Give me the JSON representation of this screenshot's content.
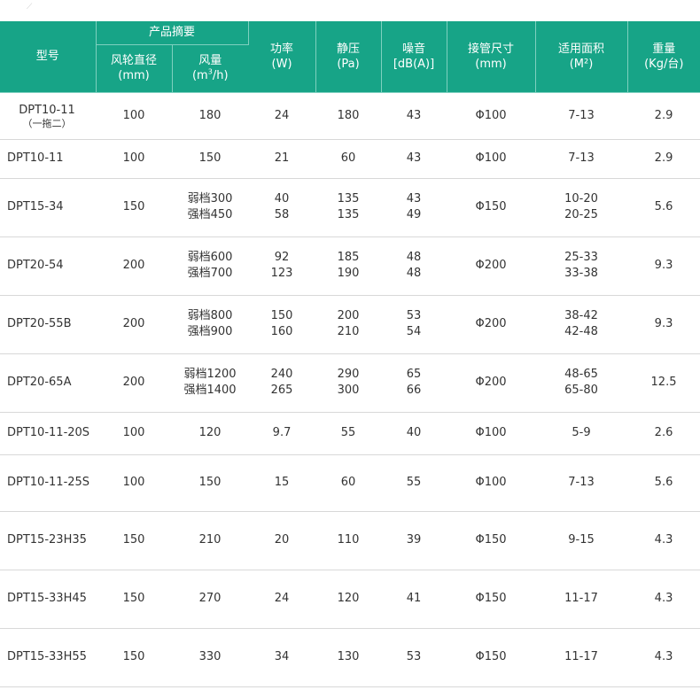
{
  "header": {
    "model": "型号",
    "summary": "产品摘要",
    "impeller_dia": "风轮直径",
    "impeller_dia_unit": "(mm)",
    "airflow": "风量",
    "airflow_unit_pre": "(m",
    "airflow_unit_sup": "3",
    "airflow_unit_post": "/h)",
    "power": "功率",
    "power_unit": "(W)",
    "static_pressure": "静压",
    "static_pressure_unit": "(Pa)",
    "noise": "噪音",
    "noise_unit": "[dB(A)]",
    "pipe_size": "接管尺寸",
    "pipe_size_unit": "(mm)",
    "area": "适用面积",
    "area_unit": "(M²)",
    "weight": "重量",
    "weight_unit": "(Kg/台)"
  },
  "rows": [
    {
      "model": "DPT10-11",
      "note": "（一拖二）",
      "dia": "100",
      "airflow": [
        "180"
      ],
      "power": [
        "24"
      ],
      "pressure": [
        "180"
      ],
      "noise": [
        "43"
      ],
      "pipe": "Φ100",
      "area": [
        "7-13"
      ],
      "weight": "2.9"
    },
    {
      "model": "DPT10-11",
      "note": "",
      "dia": "100",
      "airflow": [
        "150"
      ],
      "power": [
        "21"
      ],
      "pressure": [
        "60"
      ],
      "noise": [
        "43"
      ],
      "pipe": "Φ100",
      "area": [
        "7-13"
      ],
      "weight": "2.9"
    },
    {
      "model": "DPT15-34",
      "note": "",
      "dia": "150",
      "airflow": [
        "弱档300",
        "强档450"
      ],
      "power": [
        "40",
        "58"
      ],
      "pressure": [
        "135",
        "135"
      ],
      "noise": [
        "43",
        "49"
      ],
      "pipe": "Φ150",
      "area": [
        "10-20",
        "20-25"
      ],
      "weight": "5.6"
    },
    {
      "model": "DPT20-54",
      "note": "",
      "dia": "200",
      "airflow": [
        "弱档600",
        "强档700"
      ],
      "power": [
        "92",
        "123"
      ],
      "pressure": [
        "185",
        "190"
      ],
      "noise": [
        "48",
        "48"
      ],
      "pipe": "Φ200",
      "area": [
        "25-33",
        "33-38"
      ],
      "weight": "9.3"
    },
    {
      "model": "DPT20-55B",
      "note": "",
      "dia": "200",
      "airflow": [
        "弱档800",
        "强档900"
      ],
      "power": [
        "150",
        "160"
      ],
      "pressure": [
        "200",
        "210"
      ],
      "noise": [
        "53",
        "54"
      ],
      "pipe": "Φ200",
      "area": [
        "38-42",
        "42-48"
      ],
      "weight": "9.3"
    },
    {
      "model": "DPT20-65A",
      "note": "",
      "dia": "200",
      "airflow": [
        "弱档1200",
        "强档1400"
      ],
      "power": [
        "240",
        "265"
      ],
      "pressure": [
        "290",
        "300"
      ],
      "noise": [
        "65",
        "66"
      ],
      "pipe": "Φ200",
      "area": [
        "48-65",
        "65-80"
      ],
      "weight": "12.5"
    },
    {
      "model": "DPT10-11-20S",
      "note": "",
      "dia": "100",
      "airflow": [
        "120"
      ],
      "power": [
        "9.7"
      ],
      "pressure": [
        "55"
      ],
      "noise": [
        "40"
      ],
      "pipe": "Φ100",
      "area": [
        "5-9"
      ],
      "weight": "2.6"
    },
    {
      "model": "DPT10-11-25S",
      "note": "",
      "dia": "100",
      "airflow": [
        "150"
      ],
      "power": [
        "15"
      ],
      "pressure": [
        "60"
      ],
      "noise": [
        "55"
      ],
      "pipe": "Φ100",
      "area": [
        "7-13"
      ],
      "weight": "5.6"
    },
    {
      "model": "DPT15-23H35",
      "note": "",
      "dia": "150",
      "airflow": [
        "210"
      ],
      "power": [
        "20"
      ],
      "pressure": [
        "110"
      ],
      "noise": [
        "39"
      ],
      "pipe": "Φ150",
      "area": [
        "9-15"
      ],
      "weight": "4.3"
    },
    {
      "model": "DPT15-33H45",
      "note": "",
      "dia": "150",
      "airflow": [
        "270"
      ],
      "power": [
        "24"
      ],
      "pressure": [
        "120"
      ],
      "noise": [
        "41"
      ],
      "pipe": "Φ150",
      "area": [
        "11-17"
      ],
      "weight": "4.3"
    },
    {
      "model": "DPT15-33H55",
      "note": "",
      "dia": "150",
      "airflow": [
        "330"
      ],
      "power": [
        "34"
      ],
      "pressure": [
        "130"
      ],
      "noise": [
        "53"
      ],
      "pipe": "Φ150",
      "area": [
        "11-17"
      ],
      "weight": "4.3"
    }
  ],
  "colors": {
    "header_bg": "#17a487",
    "header_text": "#ffffff",
    "body_text": "#333333",
    "row_divider": "#d8d8d8"
  }
}
